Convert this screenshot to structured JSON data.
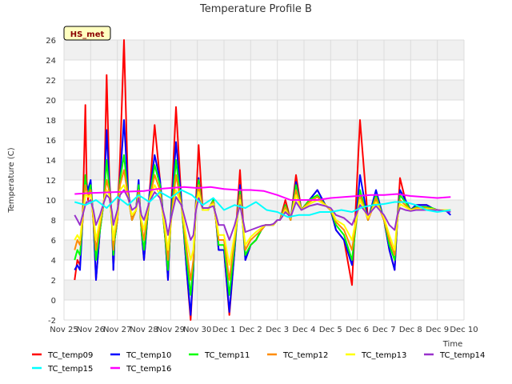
{
  "chart_data": {
    "type": "line",
    "title": "Temperature Profile B",
    "xlabel": "Time",
    "ylabel": "Temperature (C)",
    "badge": "HS_met",
    "ylim": [
      -2,
      26
    ],
    "yticks": [
      -2,
      0,
      2,
      4,
      6,
      8,
      10,
      12,
      14,
      16,
      18,
      20,
      22,
      24,
      26
    ],
    "xlim": [
      0,
      15
    ],
    "xticks": [
      {
        "x": 0,
        "label": "Nov 25"
      },
      {
        "x": 1,
        "label": "Nov 26"
      },
      {
        "x": 2,
        "label": "Nov 27"
      },
      {
        "x": 3,
        "label": "Nov 28"
      },
      {
        "x": 4,
        "label": "Nov 29"
      },
      {
        "x": 5,
        "label": "Nov 30"
      },
      {
        "x": 6,
        "label": "Dec 1"
      },
      {
        "x": 7,
        "label": "Dec 2"
      },
      {
        "x": 8,
        "label": "Dec 3"
      },
      {
        "x": 9,
        "label": "Dec 4"
      },
      {
        "x": 10,
        "label": "Dec 5"
      },
      {
        "x": 11,
        "label": "Dec 6"
      },
      {
        "x": 12,
        "label": "Dec 7"
      },
      {
        "x": 13,
        "label": "Dec 8"
      },
      {
        "x": 14,
        "label": "Dec 9"
      },
      {
        "x": 15,
        "label": "Dec 10"
      }
    ],
    "grid": true,
    "legend_position": "bottom",
    "series": [
      {
        "name": "TC_temp09",
        "color": "#ff0000",
        "x": [
          0.4,
          0.5,
          0.6,
          0.7,
          0.8,
          0.85,
          0.9,
          1.0,
          1.1,
          1.2,
          1.35,
          1.5,
          1.6,
          1.7,
          1.8,
          1.85,
          1.9,
          2.0,
          2.1,
          2.25,
          2.4,
          2.55,
          2.7,
          2.8,
          2.9,
          3.0,
          3.2,
          3.4,
          3.6,
          3.8,
          3.9,
          4.0,
          4.2,
          4.4,
          4.6,
          4.75,
          4.85,
          4.95,
          5.05,
          5.2,
          5.4,
          5.5,
          5.6,
          5.7,
          5.8,
          6.0,
          6.2,
          6.4,
          6.6,
          6.8,
          7.0,
          7.2,
          7.4,
          7.55,
          7.7,
          7.85,
          8.0,
          8.1,
          8.3,
          8.5,
          8.7,
          8.9,
          9.2,
          9.5,
          9.8,
          10.0,
          10.2,
          10.5,
          10.8,
          11.1,
          11.4,
          11.7,
          12.0,
          12.2,
          12.4,
          12.5,
          12.6,
          12.8,
          13.0,
          13.2,
          13.4,
          13.6,
          13.8,
          14.0,
          14.3,
          14.5
        ],
        "values": [
          2,
          4,
          3.5,
          8,
          19.5,
          12,
          10,
          11.5,
          8,
          2,
          7,
          10,
          22.5,
          12,
          8,
          3,
          6,
          8,
          14,
          26,
          11,
          8,
          9,
          11.5,
          7,
          4,
          10.5,
          17.5,
          12,
          6,
          2,
          8,
          19.3,
          10,
          3,
          -2,
          3,
          10,
          15.5,
          9,
          9,
          9.5,
          10,
          8,
          5,
          5,
          -1.5,
          5,
          13,
          4,
          5.5,
          6,
          7,
          7.5,
          7.5,
          7.5,
          8,
          8,
          10,
          8,
          12.5,
          9,
          10,
          11,
          9.5,
          9,
          7,
          6,
          1.5,
          18,
          8,
          10,
          8,
          5,
          3,
          8,
          12.2,
          10,
          9,
          9.5,
          9.5,
          9.5,
          9.2,
          9,
          9,
          9
        ]
      },
      {
        "name": "TC_temp10",
        "color": "#0000ff",
        "x": [
          0.4,
          0.5,
          0.6,
          0.7,
          0.8,
          0.85,
          0.9,
          1.0,
          1.1,
          1.2,
          1.35,
          1.5,
          1.6,
          1.7,
          1.8,
          1.85,
          1.9,
          2.0,
          2.1,
          2.25,
          2.4,
          2.55,
          2.7,
          2.8,
          2.9,
          3.0,
          3.2,
          3.4,
          3.6,
          3.8,
          3.9,
          4.0,
          4.2,
          4.4,
          4.6,
          4.75,
          4.85,
          4.95,
          5.05,
          5.2,
          5.4,
          5.5,
          5.6,
          5.7,
          5.8,
          6.0,
          6.2,
          6.4,
          6.6,
          6.8,
          7.0,
          7.2,
          7.4,
          7.55,
          7.7,
          7.85,
          8.0,
          8.1,
          8.3,
          8.5,
          8.7,
          8.9,
          9.2,
          9.5,
          9.8,
          10.0,
          10.2,
          10.5,
          10.8,
          11.1,
          11.4,
          11.7,
          12.0,
          12.2,
          12.4,
          12.5,
          12.6,
          12.8,
          13.0,
          13.2,
          13.4,
          13.6,
          13.8,
          14.0,
          14.3,
          14.5
        ],
        "values": [
          3,
          3.5,
          3,
          8,
          12,
          11.5,
          11,
          12,
          8,
          2,
          7,
          10,
          17,
          11.5,
          7.5,
          3,
          6,
          8,
          12,
          18,
          11,
          8,
          9,
          12,
          7,
          4,
          10.5,
          14.5,
          12,
          6,
          2,
          8,
          15.8,
          10,
          3,
          -1.5,
          3,
          10,
          12.2,
          9,
          9,
          9.5,
          10,
          8,
          5,
          5,
          -1.2,
          5,
          11.5,
          4,
          5.5,
          6,
          7,
          7.5,
          7.5,
          7.5,
          8,
          8,
          9.5,
          8,
          11.8,
          9,
          10,
          11,
          9.5,
          9,
          7,
          6,
          3.5,
          12.5,
          8,
          11,
          8,
          5,
          3,
          8,
          11,
          10,
          9,
          9.5,
          9.5,
          9.5,
          9.2,
          9,
          9,
          8.5
        ]
      },
      {
        "name": "TC_temp11",
        "color": "#00ff00",
        "x": [
          0.4,
          0.5,
          0.6,
          0.7,
          0.8,
          0.85,
          0.9,
          1.0,
          1.1,
          1.2,
          1.35,
          1.5,
          1.6,
          1.7,
          1.8,
          1.85,
          1.9,
          2.0,
          2.1,
          2.25,
          2.4,
          2.55,
          2.7,
          2.8,
          2.9,
          3.0,
          3.2,
          3.4,
          3.6,
          3.8,
          3.9,
          4.0,
          4.2,
          4.4,
          4.6,
          4.75,
          4.85,
          4.95,
          5.05,
          5.2,
          5.4,
          5.5,
          5.6,
          5.7,
          5.8,
          6.0,
          6.2,
          6.4,
          6.6,
          6.8,
          7.0,
          7.2,
          7.4,
          7.55,
          7.7,
          7.85,
          8.0,
          8.1,
          8.3,
          8.5,
          8.7,
          8.9,
          9.2,
          9.5,
          9.8,
          10.0,
          10.2,
          10.5,
          10.8,
          11.1,
          11.4,
          11.7,
          12.0,
          12.2,
          12.4,
          12.5,
          12.6,
          12.8,
          13.0,
          13.2,
          13.4,
          13.6,
          13.8,
          14.0,
          14.3,
          14.5
        ],
        "values": [
          4,
          5,
          4.5,
          8,
          12.5,
          11,
          10.5,
          11.5,
          8,
          4,
          7,
          10,
          14,
          11,
          7.5,
          4.5,
          6,
          8,
          12,
          14.5,
          10.5,
          8,
          9,
          11.5,
          7,
          5,
          10,
          13.5,
          11.5,
          6,
          3,
          7.5,
          14,
          9.5,
          4,
          0.5,
          3.5,
          9.5,
          12,
          9,
          9,
          9.5,
          10,
          8,
          5.5,
          5.5,
          0.5,
          5.5,
          11,
          4.5,
          5.5,
          6,
          7,
          7.5,
          7.5,
          7.5,
          8,
          8,
          9.5,
          8,
          11.5,
          9,
          10,
          10.5,
          9.5,
          9,
          7.5,
          6.5,
          4,
          11,
          8,
          10.5,
          8,
          5.5,
          4,
          8,
          10.5,
          9.8,
          9,
          9.3,
          9.3,
          9.3,
          9.2,
          9,
          9,
          9
        ]
      },
      {
        "name": "TC_temp12",
        "color": "#ff8c00",
        "x": [
          0.4,
          0.5,
          0.6,
          0.7,
          0.8,
          0.85,
          0.9,
          1.0,
          1.1,
          1.2,
          1.35,
          1.5,
          1.6,
          1.7,
          1.8,
          1.85,
          1.9,
          2.0,
          2.1,
          2.25,
          2.4,
          2.55,
          2.7,
          2.8,
          2.9,
          3.0,
          3.2,
          3.4,
          3.6,
          3.8,
          3.9,
          4.0,
          4.2,
          4.4,
          4.6,
          4.75,
          4.85,
          4.95,
          5.05,
          5.2,
          5.4,
          5.5,
          5.6,
          5.7,
          5.8,
          6.0,
          6.2,
          6.4,
          6.6,
          6.8,
          7.0,
          7.2,
          7.4,
          7.55,
          7.7,
          7.85,
          8.0,
          8.1,
          8.3,
          8.5,
          8.7,
          8.9,
          9.2,
          9.5,
          9.8,
          10.0,
          10.2,
          10.5,
          10.8,
          11.1,
          11.4,
          11.7,
          12.0,
          12.2,
          12.4,
          12.5,
          12.6,
          12.8,
          13.0,
          13.2,
          13.4,
          13.6,
          13.8,
          14.0,
          14.3,
          14.5
        ],
        "values": [
          5,
          6,
          5.5,
          8,
          11.5,
          11,
          10.5,
          11,
          8,
          5,
          7.5,
          10,
          12,
          10.8,
          7.8,
          5,
          6.5,
          8,
          11.5,
          13,
          10.5,
          8,
          9,
          11,
          7.5,
          6,
          10,
          12.5,
          11,
          6.5,
          4,
          7.5,
          12.5,
          9.5,
          5,
          2,
          4,
          9.5,
          11.5,
          9,
          9,
          9.5,
          9.8,
          8,
          6,
          6,
          2,
          6,
          10.5,
          5,
          6,
          6.5,
          7,
          7.5,
          7.5,
          7.5,
          8,
          8,
          9.3,
          8,
          11,
          9,
          9.8,
          10.3,
          9.5,
          9,
          7.8,
          7,
          5,
          10.5,
          8,
          10.2,
          8,
          6,
          4.5,
          8,
          10,
          9.5,
          9,
          9.2,
          9.2,
          9.2,
          9.1,
          9,
          9,
          9
        ]
      },
      {
        "name": "TC_temp13",
        "color": "#ffff00",
        "x": [
          0.4,
          0.5,
          0.6,
          0.7,
          0.8,
          0.85,
          0.9,
          1.0,
          1.1,
          1.2,
          1.35,
          1.5,
          1.6,
          1.7,
          1.8,
          1.85,
          1.9,
          2.0,
          2.1,
          2.25,
          2.4,
          2.55,
          2.7,
          2.8,
          2.9,
          3.0,
          3.2,
          3.4,
          3.6,
          3.8,
          3.9,
          4.0,
          4.2,
          4.4,
          4.6,
          4.75,
          4.85,
          4.95,
          5.05,
          5.2,
          5.4,
          5.5,
          5.6,
          5.7,
          5.8,
          6.0,
          6.2,
          6.4,
          6.6,
          6.8,
          7.0,
          7.2,
          7.4,
          7.55,
          7.7,
          7.85,
          8.0,
          8.1,
          8.3,
          8.5,
          8.7,
          8.9,
          9.2,
          9.5,
          9.8,
          10.0,
          10.2,
          10.5,
          10.8,
          11.1,
          11.4,
          11.7,
          12.0,
          12.2,
          12.4,
          12.5,
          12.6,
          12.8,
          13.0,
          13.2,
          13.4,
          13.6,
          13.8,
          14.0,
          14.3,
          14.5
        ],
        "values": [
          6,
          6.5,
          6,
          8.5,
          10.5,
          10.5,
          10.3,
          10.5,
          8.5,
          6,
          8,
          10,
          11,
          10.5,
          8,
          6,
          7,
          8.5,
          11,
          11.5,
          10.3,
          8.5,
          9,
          10.5,
          8,
          7,
          10,
          11.5,
          10.5,
          7,
          5,
          7.8,
          11,
          9.5,
          6,
          4,
          5,
          9.3,
          10.8,
          9,
          9,
          9.5,
          9.6,
          8.2,
          6.5,
          6.5,
          3.5,
          6.5,
          10,
          5.5,
          6.3,
          6.8,
          7.2,
          7.5,
          7.5,
          7.5,
          8,
          8,
          9,
          8.2,
          10.5,
          9,
          9.6,
          10,
          9.5,
          9.1,
          8,
          7.5,
          6,
          10,
          8.2,
          9.8,
          8.2,
          6.5,
          5,
          8.2,
          9.6,
          9.3,
          9,
          9.1,
          9.1,
          9.1,
          9.1,
          9,
          9,
          9
        ]
      },
      {
        "name": "TC_temp14",
        "color": "#9932cc",
        "x": [
          0.4,
          0.5,
          0.6,
          0.7,
          0.8,
          0.85,
          0.9,
          1.0,
          1.1,
          1.2,
          1.35,
          1.5,
          1.6,
          1.7,
          1.8,
          1.85,
          1.9,
          2.0,
          2.1,
          2.25,
          2.4,
          2.55,
          2.7,
          2.8,
          2.9,
          3.0,
          3.2,
          3.4,
          3.6,
          3.8,
          3.9,
          4.0,
          4.2,
          4.4,
          4.6,
          4.75,
          4.85,
          4.95,
          5.05,
          5.2,
          5.4,
          5.5,
          5.6,
          5.7,
          5.8,
          6.0,
          6.2,
          6.4,
          6.6,
          6.8,
          7.0,
          7.2,
          7.4,
          7.55,
          7.7,
          7.85,
          8.0,
          8.1,
          8.3,
          8.5,
          8.7,
          8.9,
          9.2,
          9.5,
          9.8,
          10.0,
          10.2,
          10.5,
          10.8,
          11.1,
          11.4,
          11.7,
          12.0,
          12.2,
          12.4,
          12.5,
          12.6,
          12.8,
          13.0,
          13.2,
          13.4,
          13.6,
          13.8,
          14.0,
          14.3,
          14.5
        ],
        "values": [
          8.5,
          8,
          7.5,
          8.5,
          9.5,
          9.8,
          9.8,
          10,
          9,
          7.5,
          8.5,
          9.8,
          10.5,
          10.2,
          8.8,
          7.5,
          8,
          9,
          10.5,
          11,
          10.2,
          9,
          9.3,
          10.2,
          8.5,
          8,
          9.8,
          10.8,
          10.2,
          8,
          6.5,
          8,
          10.3,
          9.5,
          7.5,
          6,
          6.5,
          9,
          10.2,
          9.2,
          9.2,
          9.3,
          9.4,
          8.5,
          7.5,
          7.5,
          6,
          7.5,
          9.5,
          6.8,
          7,
          7.2,
          7.4,
          7.5,
          7.5,
          7.6,
          8,
          8,
          8.8,
          8.3,
          9.8,
          9,
          9.4,
          9.6,
          9.4,
          9.2,
          8.5,
          8.2,
          7.5,
          9.5,
          8.5,
          9.4,
          8.5,
          7.5,
          7,
          8.5,
          9.2,
          9,
          8.9,
          9,
          9,
          9,
          9,
          9,
          8.9,
          8.8
        ]
      },
      {
        "name": "TC_temp15",
        "color": "#00ffff",
        "x": [
          0.4,
          0.8,
          1.2,
          1.6,
          2.0,
          2.4,
          2.8,
          3.2,
          3.6,
          4.0,
          4.4,
          4.8,
          5.2,
          5.6,
          6.0,
          6.4,
          6.8,
          7.2,
          7.6,
          8.0,
          8.4,
          8.8,
          9.2,
          9.6,
          10.0,
          10.4,
          10.8,
          11.2,
          11.6,
          12.0,
          12.4,
          12.8,
          13.2,
          13.6,
          14.0,
          14.5
        ],
        "values": [
          9.8,
          9.5,
          10,
          9.2,
          10.3,
          9.5,
          10.5,
          9.8,
          10.8,
          10.2,
          11,
          10.5,
          9.5,
          10.2,
          9,
          9.5,
          9.2,
          9.8,
          9,
          8.8,
          8.3,
          8.5,
          8.5,
          8.8,
          8.8,
          9,
          8.8,
          9.3,
          9.5,
          9.6,
          9.8,
          9.8,
          9.5,
          9,
          8.8,
          9
        ]
      },
      {
        "name": "TC_temp16",
        "color": "#ff00ff",
        "x": [
          0.4,
          1.0,
          2.0,
          3.0,
          3.5,
          4.0,
          4.5,
          5.0,
          5.5,
          6.0,
          6.5,
          7.0,
          7.5,
          8.0,
          8.5,
          9.0,
          9.5,
          10.0,
          10.5,
          11.0,
          11.5,
          12.0,
          12.5,
          13.0,
          13.5,
          14.0,
          14.5
        ],
        "values": [
          10.6,
          10.7,
          10.8,
          10.9,
          11.1,
          11.2,
          11.3,
          11.2,
          11.3,
          11.1,
          11.0,
          11.0,
          10.9,
          10.5,
          10.0,
          10.0,
          10.0,
          10.2,
          10.3,
          10.4,
          10.5,
          10.5,
          10.6,
          10.4,
          10.3,
          10.2,
          10.3
        ]
      }
    ]
  }
}
